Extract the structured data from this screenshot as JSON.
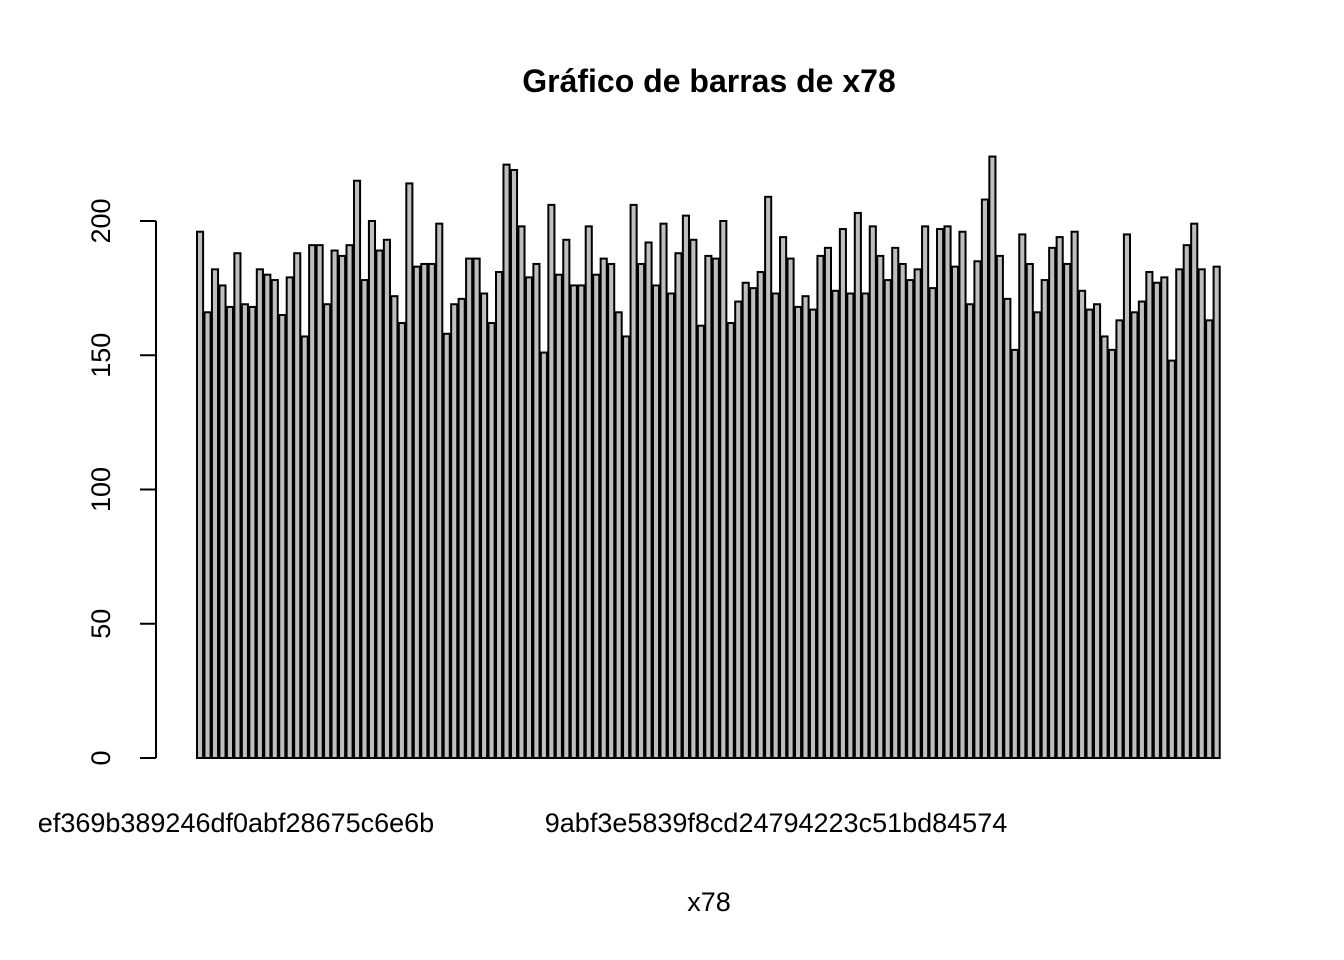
{
  "chart_data": {
    "type": "bar",
    "title": "Gráfico de barras de x78",
    "xlabel": "x78",
    "ylabel": "",
    "ylim": [
      0,
      224
    ],
    "y_ticks": [
      0,
      50,
      100,
      150,
      200
    ],
    "y_tick_labels": [
      "0",
      "50",
      "100",
      "150",
      "200"
    ],
    "x_tick_labels": [
      "ef369b389246df0abf28675c6e6b",
      "9abf3e5839f8cd24794223c51bd84574"
    ],
    "grid": false,
    "legend": "none",
    "colors": {
      "bar_fill": "#bebebe",
      "bar_stroke": "#000000",
      "background": "#ffffff"
    },
    "values": [
      196,
      166,
      182,
      176,
      168,
      188,
      169,
      168,
      182,
      180,
      178,
      165,
      179,
      188,
      157,
      191,
      191,
      169,
      189,
      187,
      191,
      215,
      178,
      200,
      189,
      193,
      172,
      162,
      214,
      183,
      184,
      184,
      199,
      158,
      169,
      171,
      186,
      186,
      173,
      162,
      181,
      221,
      219,
      198,
      179,
      184,
      151,
      206,
      180,
      193,
      176,
      176,
      198,
      180,
      186,
      184,
      166,
      157,
      206,
      184,
      192,
      176,
      199,
      173,
      188,
      202,
      193,
      161,
      187,
      186,
      200,
      162,
      170,
      177,
      175,
      181,
      209,
      173,
      194,
      186,
      168,
      172,
      167,
      187,
      190,
      174,
      197,
      173,
      203,
      173,
      198,
      187,
      178,
      190,
      184,
      178,
      182,
      198,
      175,
      197,
      198,
      183,
      196,
      169,
      185,
      208,
      224,
      187,
      171,
      152,
      195,
      184,
      166,
      178,
      190,
      194,
      184,
      196,
      174,
      167,
      169,
      157,
      152,
      163,
      195,
      166,
      170,
      181,
      177,
      179,
      148,
      182,
      191,
      199,
      182,
      163,
      183
    ]
  }
}
